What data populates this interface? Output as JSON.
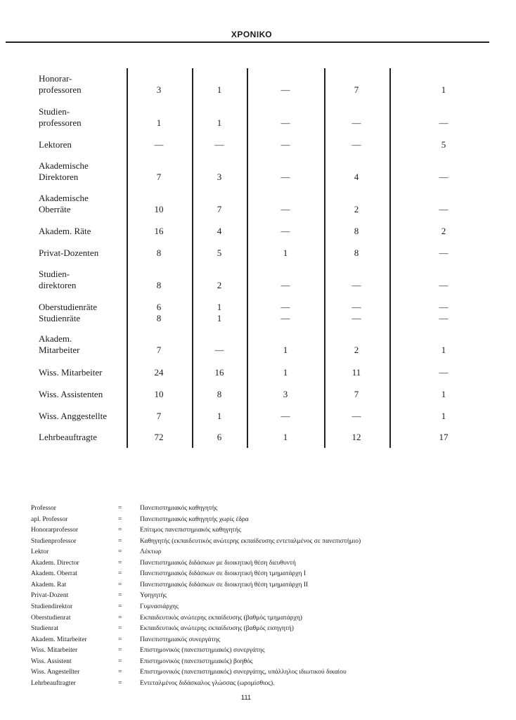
{
  "header": {
    "title": "ΧΡΟΝΙΚΟ"
  },
  "table": {
    "rows": [
      {
        "label": "Honorar-\nprofessoren",
        "values": [
          "3",
          "1",
          "—",
          "7",
          "1"
        ]
      },
      {
        "label": "Studien-\nprofessoren",
        "values": [
          "1",
          "1",
          "—",
          "—",
          "—"
        ]
      },
      {
        "label": "Lektoren",
        "values": [
          "—",
          "—",
          "—",
          "—",
          "5"
        ]
      },
      {
        "label": "Akademische\nDirektoren",
        "values": [
          "7",
          "3",
          "—",
          "4",
          "—"
        ]
      },
      {
        "label": "Akademische\nOberräte",
        "values": [
          "10",
          "7",
          "—",
          "2",
          "—"
        ]
      },
      {
        "label": "Akadem. Räte",
        "values": [
          "16",
          "4",
          "—",
          "8",
          "2"
        ]
      },
      {
        "label": "Privat-Dozenten",
        "values": [
          "8",
          "5",
          "1",
          "8",
          "—"
        ]
      },
      {
        "label": "Studien-\ndirektoren",
        "values": [
          "8",
          "2",
          "—",
          "—",
          "—"
        ]
      },
      {
        "label": "Oberstudienräte",
        "values": [
          "6",
          "1",
          "—",
          "—",
          "—"
        ]
      },
      {
        "label": "Studienräte",
        "values": [
          "8",
          "1",
          "—",
          "—",
          "—"
        ]
      },
      {
        "label": "Akadem.\nMitarbeiter",
        "values": [
          "7",
          "—",
          "1",
          "2",
          "1"
        ]
      },
      {
        "label": "Wiss. Mitarbeiter",
        "values": [
          "24",
          "16",
          "1",
          "11",
          "—"
        ]
      },
      {
        "label": "Wiss. Assistenten",
        "values": [
          "10",
          "8",
          "3",
          "7",
          "1"
        ]
      },
      {
        "label": "Wiss. Anggestellte",
        "values": [
          "7",
          "1",
          "—",
          "—",
          "1"
        ]
      },
      {
        "label": "Lehrbeauftragte",
        "values": [
          "72",
          "6",
          "1",
          "12",
          "17"
        ]
      }
    ]
  },
  "glossary": [
    {
      "term": "Professor",
      "eq": "=",
      "def": "Πανεπιστημιακός καθηγητής"
    },
    {
      "term": "apl. Professor",
      "eq": "=",
      "def": "Πανεπιστημιακός καθηγητής χωρίς έδρα"
    },
    {
      "term": "Honorarprofessor",
      "eq": "=",
      "def": "Επίτιμος πανεπιστημιακός καθηγητής"
    },
    {
      "term": "Studienprofessor",
      "eq": "=",
      "def": "Καθηγητής (εκπαιδευτικός ανώτερης εκπαίδευσης εντεταλμένος σε πανεπιστήμιο)"
    },
    {
      "term": "Lektor",
      "eq": "=",
      "def": "Λέκτωρ"
    },
    {
      "term": "Akadem. Director",
      "eq": "=",
      "def": "Πανεπιστημιακός διδάσκων με διοικητική θέση διευθυντή"
    },
    {
      "term": "Akadem. Oberrat",
      "eq": "=",
      "def": "Πανεπιστημιακός διδάσκων σε διοικητική θέση τμηματάρχη I"
    },
    {
      "term": "Akadem. Rat",
      "eq": "=",
      "def": "Πανεπιστημιακός διδάσκων σε διοικητική θέση τμηματάρχη II"
    },
    {
      "term": "Privat-Dozent",
      "eq": "=",
      "def": "Υφηγητής"
    },
    {
      "term": "Studiendirektor",
      "eq": "=",
      "def": "Γυμνασιάρχης"
    },
    {
      "term": "Oberstudienrat",
      "eq": "=",
      "def": "Εκπαιδευτικός ανώτερης εκπαίδευσης (βαθμός τμηματάρχη)"
    },
    {
      "term": "Studienrat",
      "eq": "=",
      "def": "Εκπαιδευτικός ανώτερης εκπαίδευσης (βαθμός εισηγητή)"
    },
    {
      "term": "Akadem. Mitarbeiter",
      "eq": "=",
      "def": "Πανεπιστημιακός συνεργάτης"
    },
    {
      "term": "Wiss. Mitarbeiter",
      "eq": "=",
      "def": "Επιστημονικός (πανεπιστημιακός) συνεργάτης"
    },
    {
      "term": "Wiss. Assistent",
      "eq": "=",
      "def": "Επιστημονικός (πανεπιστημιακός) βοηθός"
    },
    {
      "term": "Wiss. Angestellter",
      "eq": "=",
      "def": "Επιστημονικός (πανεπιστημιακός) συνεργάτης, υπάλληλος ιδιωτικού δικαίου"
    },
    {
      "term": "Lehrbeauftragter",
      "eq": "=",
      "def": "Εντεταλμένος διδάσκαλος γλώσσας (ωρομίσθιος)."
    }
  ],
  "footer": {
    "page_number": "111"
  }
}
